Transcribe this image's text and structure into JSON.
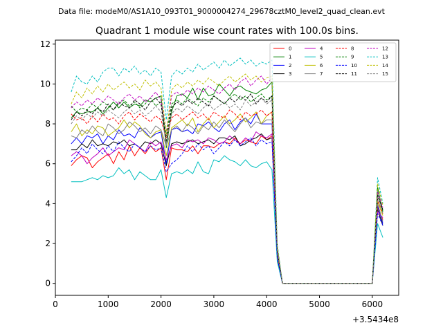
{
  "figure": {
    "suptitle": "Data file: modeM0/AS1A10_093T01_9000004274_29678cztM0_level2_quad_clean.evt"
  },
  "chart_data": {
    "type": "line",
    "title": "Quadrant 1 module wise count rates with 100.0s bins.",
    "xlabel": "",
    "ylabel": "",
    "x_offset_label": "+3.5434e8",
    "xlim": [
      0,
      6500
    ],
    "ylim": [
      -0.6,
      12.2
    ],
    "xticks": [
      0,
      1000,
      2000,
      3000,
      4000,
      5000,
      6000
    ],
    "yticks": [
      0,
      2,
      4,
      6,
      8,
      10,
      12
    ],
    "grid": false,
    "legend_position": "top-right",
    "legend_columns": 4,
    "x": [
      300,
      400,
      500,
      600,
      700,
      800,
      900,
      1000,
      1100,
      1200,
      1300,
      1400,
      1500,
      1600,
      1700,
      1800,
      1900,
      2000,
      2100,
      2200,
      2300,
      2400,
      2500,
      2600,
      2700,
      2800,
      2900,
      3000,
      3100,
      3200,
      3300,
      3400,
      3500,
      3600,
      3700,
      3800,
      3900,
      4000,
      4100,
      4200,
      4300,
      4400,
      4500,
      4600,
      4700,
      4800,
      4900,
      5000,
      5100,
      5200,
      5300,
      5400,
      5500,
      5600,
      5700,
      5800,
      5900,
      6000,
      6100,
      6200
    ],
    "series": [
      {
        "name": "0",
        "color": "#ff0000",
        "dash": "solid",
        "values": [
          5.9,
          6.2,
          6.4,
          6.3,
          5.8,
          6.1,
          6.3,
          6.5,
          6.0,
          6.6,
          6.2,
          6.9,
          6.4,
          6.8,
          6.5,
          6.9,
          6.6,
          6.8,
          5.2,
          6.8,
          6.7,
          6.7,
          6.6,
          6.9,
          6.5,
          6.9,
          6.9,
          6.8,
          7.0,
          7.1,
          7.0,
          7.3,
          7.0,
          7.2,
          7.1,
          7.0,
          7.4,
          7.2,
          7.4,
          1.3,
          0,
          0,
          0,
          0,
          0,
          0,
          0,
          0,
          0,
          0,
          0,
          0,
          0,
          0,
          0,
          0,
          0,
          0,
          3.8,
          3.2
        ]
      },
      {
        "name": "1",
        "color": "#008000",
        "dash": "solid",
        "values": [
          8.3,
          8.6,
          8.5,
          8.6,
          8.6,
          8.8,
          8.5,
          8.8,
          9.1,
          8.8,
          9.1,
          8.8,
          9.0,
          8.9,
          9.2,
          9.1,
          9.3,
          9.4,
          6.8,
          8.6,
          9.4,
          9.5,
          9.3,
          9.8,
          9.2,
          9.8,
          9.4,
          9.5,
          10.0,
          9.7,
          9.4,
          9.8,
          9.9,
          9.7,
          9.6,
          9.5,
          9.7,
          9.8,
          10.1,
          1.6,
          0,
          0,
          0,
          0,
          0,
          0,
          0,
          0,
          0,
          0,
          0,
          0,
          0,
          0,
          0,
          0,
          0,
          0,
          4.8,
          3.6
        ]
      },
      {
        "name": "2",
        "color": "#0000ff",
        "dash": "solid",
        "values": [
          7.0,
          7.3,
          7.0,
          7.4,
          7.3,
          7.5,
          7.0,
          7.4,
          7.2,
          7.7,
          7.4,
          7.5,
          7.3,
          7.8,
          7.6,
          7.3,
          7.5,
          7.6,
          6.0,
          7.7,
          7.8,
          7.6,
          7.7,
          7.5,
          8.0,
          7.9,
          8.1,
          7.8,
          7.6,
          8.0,
          8.2,
          7.7,
          8.1,
          8.3,
          8.0,
          8.5,
          8.0,
          8.0,
          8.0,
          1.5,
          0,
          0,
          0,
          0,
          0,
          0,
          0,
          0,
          0,
          0,
          0,
          0,
          0,
          0,
          0,
          0,
          0,
          0,
          3.9,
          3.0
        ]
      },
      {
        "name": "3",
        "color": "#000000",
        "dash": "solid",
        "values": [
          6.7,
          6.7,
          7.0,
          6.8,
          7.2,
          6.9,
          7.0,
          6.9,
          7.1,
          7.0,
          7.2,
          6.9,
          7.0,
          6.8,
          7.1,
          7.0,
          7.2,
          7.0,
          5.9,
          7.0,
          7.1,
          7.0,
          7.1,
          7.2,
          7.0,
          7.1,
          7.2,
          7.0,
          7.3,
          7.3,
          7.2,
          7.4,
          6.9,
          7.0,
          7.2,
          7.3,
          7.5,
          7.2,
          7.3,
          1.3,
          0,
          0,
          0,
          0,
          0,
          0,
          0,
          0,
          0,
          0,
          0,
          0,
          0,
          0,
          0,
          0,
          0,
          0,
          3.7,
          2.9
        ]
      },
      {
        "name": "4",
        "color": "#bf00bf",
        "dash": "solid",
        "values": [
          6.4,
          6.6,
          6.4,
          6.0,
          6.3,
          6.5,
          6.8,
          6.4,
          6.6,
          6.8,
          6.7,
          7.2,
          7.0,
          6.8,
          6.6,
          7.1,
          6.9,
          7.1,
          6.2,
          6.9,
          7.0,
          6.8,
          7.2,
          7.1,
          7.2,
          7.0,
          7.3,
          7.2,
          7.0,
          7.1,
          7.4,
          7.2,
          7.0,
          7.3,
          7.1,
          7.6,
          7.4,
          7.3,
          7.5,
          1.4,
          0,
          0,
          0,
          0,
          0,
          0,
          0,
          0,
          0,
          0,
          0,
          0,
          0,
          0,
          0,
          0,
          0,
          0,
          3.6,
          3.3
        ]
      },
      {
        "name": "5",
        "color": "#00bfbf",
        "dash": "solid",
        "values": [
          5.1,
          5.1,
          5.1,
          5.2,
          5.3,
          5.2,
          5.4,
          5.3,
          5.4,
          5.8,
          5.5,
          5.7,
          5.2,
          5.6,
          5.4,
          5.2,
          5.2,
          5.7,
          4.3,
          5.5,
          5.6,
          5.5,
          5.7,
          5.5,
          6.1,
          5.6,
          5.5,
          6.2,
          6.1,
          6.4,
          6.2,
          6.1,
          5.9,
          6.2,
          5.9,
          5.8,
          6.0,
          6.1,
          5.7,
          1.1,
          0,
          0,
          0,
          0,
          0,
          0,
          0,
          0,
          0,
          0,
          0,
          0,
          0,
          0,
          0,
          0,
          0,
          0,
          3.0,
          2.3
        ]
      },
      {
        "name": "6",
        "color": "#bfbf00",
        "dash": "solid",
        "values": [
          7.6,
          8.0,
          7.4,
          7.7,
          7.5,
          7.9,
          7.8,
          7.4,
          7.6,
          7.8,
          8.2,
          7.8,
          8.1,
          7.9,
          7.5,
          7.3,
          7.6,
          7.7,
          6.4,
          7.8,
          8.0,
          8.2,
          7.9,
          8.3,
          7.6,
          8.0,
          8.3,
          7.8,
          8.1,
          8.4,
          8.0,
          8.2,
          8.5,
          8.1,
          8.3,
          8.6,
          8.0,
          8.4,
          8.6,
          1.5,
          0,
          0,
          0,
          0,
          0,
          0,
          0,
          0,
          0,
          0,
          0,
          0,
          0,
          0,
          0,
          0,
          0,
          0,
          4.1,
          3.4
        ]
      },
      {
        "name": "7",
        "color": "#808080",
        "dash": "solid",
        "values": [
          7.4,
          7.3,
          7.7,
          7.5,
          7.9,
          7.6,
          7.4,
          8.0,
          7.8,
          7.5,
          7.7,
          8.1,
          7.9,
          7.6,
          7.8,
          7.5,
          7.9,
          7.7,
          6.9,
          7.7,
          7.9,
          7.6,
          8.0,
          7.8,
          7.5,
          7.9,
          7.7,
          8.1,
          7.8,
          8.2,
          7.9,
          7.6,
          8.0,
          8.3,
          7.8,
          8.1,
          8.0,
          8.2,
          8.2,
          1.5,
          0,
          0,
          0,
          0,
          0,
          0,
          0,
          0,
          0,
          0,
          0,
          0,
          0,
          0,
          0,
          0,
          0,
          0,
          4.0,
          3.1
        ]
      },
      {
        "name": "8",
        "color": "#ff0000",
        "dash": "dashed",
        "values": [
          8.5,
          8.2,
          8.3,
          8.0,
          8.4,
          8.1,
          8.5,
          8.2,
          8.3,
          8.0,
          8.4,
          8.6,
          8.2,
          8.5,
          8.3,
          8.1,
          8.4,
          8.2,
          7.3,
          8.3,
          8.5,
          8.2,
          8.4,
          8.6,
          8.3,
          8.5,
          8.2,
          8.6,
          8.4,
          8.3,
          8.7,
          8.5,
          8.2,
          8.6,
          8.4,
          8.5,
          8.7,
          8.4,
          8.6,
          1.6,
          0,
          0,
          0,
          0,
          0,
          0,
          0,
          0,
          0,
          0,
          0,
          0,
          0,
          0,
          0,
          0,
          0,
          0,
          4.2,
          3.5
        ]
      },
      {
        "name": "9",
        "color": "#008000",
        "dash": "dashed",
        "values": [
          8.9,
          8.6,
          8.8,
          8.7,
          9.0,
          8.8,
          9.1,
          8.9,
          8.7,
          9.0,
          9.2,
          8.9,
          9.1,
          8.8,
          9.0,
          9.3,
          8.9,
          9.1,
          7.4,
          9.0,
          9.2,
          9.0,
          9.3,
          9.1,
          8.9,
          9.3,
          9.1,
          9.4,
          9.2,
          9.0,
          9.3,
          9.5,
          9.2,
          9.4,
          9.1,
          9.3,
          9.5,
          9.2,
          9.4,
          1.7,
          0,
          0,
          0,
          0,
          0,
          0,
          0,
          0,
          0,
          0,
          0,
          0,
          0,
          0,
          0,
          0,
          0,
          0,
          4.5,
          3.6
        ]
      },
      {
        "name": "10",
        "color": "#0000ff",
        "dash": "dashed",
        "values": [
          6.1,
          6.4,
          6.8,
          6.5,
          7.0,
          6.7,
          6.5,
          6.9,
          6.6,
          7.1,
          6.8,
          6.6,
          7.0,
          6.8,
          6.6,
          6.9,
          6.7,
          6.8,
          5.6,
          6.0,
          6.2,
          6.5,
          6.9,
          6.6,
          7.0,
          6.7,
          6.9,
          6.5,
          6.8,
          7.1,
          6.9,
          7.2,
          6.9,
          7.1,
          7.3,
          6.9,
          7.2,
          7.0,
          7.1,
          1.3,
          0,
          0,
          0,
          0,
          0,
          0,
          0,
          0,
          0,
          0,
          0,
          0,
          0,
          0,
          0,
          0,
          0,
          0,
          3.5,
          2.9
        ]
      },
      {
        "name": "11",
        "color": "#000000",
        "dash": "dashed",
        "values": [
          8.2,
          8.6,
          8.4,
          8.7,
          8.5,
          8.8,
          8.6,
          9.0,
          8.7,
          9.1,
          8.9,
          8.8,
          9.2,
          9.0,
          8.7,
          9.1,
          9.3,
          9.0,
          7.1,
          8.8,
          9.1,
          8.9,
          9.2,
          9.0,
          9.3,
          9.1,
          8.9,
          9.4,
          9.2,
          9.0,
          9.3,
          9.1,
          9.4,
          9.2,
          9.5,
          9.0,
          9.3,
          9.1,
          9.4,
          1.7,
          0,
          0,
          0,
          0,
          0,
          0,
          0,
          0,
          0,
          0,
          0,
          0,
          0,
          0,
          0,
          0,
          0,
          0,
          4.4,
          3.7
        ]
      },
      {
        "name": "12",
        "color": "#bf00bf",
        "dash": "dashed",
        "values": [
          8.8,
          9.1,
          8.9,
          9.2,
          9.0,
          9.3,
          9.1,
          9.4,
          9.2,
          9.0,
          9.3,
          9.5,
          9.2,
          9.4,
          9.1,
          9.3,
          9.6,
          9.2,
          7.6,
          9.4,
          9.6,
          9.4,
          9.7,
          9.5,
          9.8,
          9.6,
          9.9,
          9.7,
          9.5,
          9.8,
          10.0,
          9.7,
          10.1,
          10.3,
          9.9,
          10.2,
          10.4,
          10.0,
          10.3,
          1.8,
          0,
          0,
          0,
          0,
          0,
          0,
          0,
          0,
          0,
          0,
          0,
          0,
          0,
          0,
          0,
          0,
          0,
          0,
          4.6,
          3.8
        ]
      },
      {
        "name": "13",
        "color": "#00bfbf",
        "dash": "dashed",
        "values": [
          9.6,
          10.4,
          10.1,
          10.0,
          10.4,
          10.1,
          10.6,
          10.8,
          10.8,
          10.4,
          10.8,
          10.6,
          10.9,
          10.5,
          10.7,
          10.4,
          10.8,
          10.6,
          8.2,
          10.4,
          10.7,
          10.5,
          10.8,
          10.6,
          11.0,
          10.7,
          10.9,
          11.1,
          10.8,
          11.2,
          10.9,
          11.1,
          11.3,
          11.0,
          11.2,
          10.9,
          11.1,
          11.0,
          11.2,
          2.0,
          0,
          0,
          0,
          0,
          0,
          0,
          0,
          0,
          0,
          0,
          0,
          0,
          0,
          0,
          0,
          0,
          0,
          0,
          5.3,
          4.0
        ]
      },
      {
        "name": "14",
        "color": "#bfbf00",
        "dash": "dashed",
        "values": [
          9.0,
          9.6,
          9.3,
          9.8,
          9.5,
          9.9,
          9.6,
          10.0,
          9.7,
          9.9,
          10.1,
          9.8,
          10.0,
          9.7,
          10.2,
          9.9,
          10.1,
          9.8,
          7.5,
          9.7,
          10.0,
          9.8,
          10.1,
          9.9,
          10.2,
          10.0,
          10.3,
          10.1,
          9.9,
          10.2,
          10.4,
          10.1,
          10.3,
          10.5,
          10.2,
          10.4,
          10.1,
          10.3,
          10.4,
          1.9,
          0,
          0,
          0,
          0,
          0,
          0,
          0,
          0,
          0,
          0,
          0,
          0,
          0,
          0,
          0,
          0,
          0,
          0,
          5.0,
          3.9
        ]
      },
      {
        "name": "15",
        "color": "#808080",
        "dash": "dashed",
        "values": [
          8.0,
          8.4,
          8.2,
          8.5,
          8.3,
          8.6,
          8.4,
          8.7,
          8.5,
          8.3,
          8.6,
          8.8,
          8.5,
          8.7,
          8.4,
          8.6,
          8.9,
          8.6,
          7.0,
          8.5,
          8.8,
          8.6,
          8.9,
          8.7,
          8.5,
          8.8,
          9.0,
          8.7,
          8.9,
          9.1,
          8.8,
          9.0,
          8.7,
          9.2,
          8.9,
          9.1,
          9.3,
          9.0,
          9.2,
          1.7,
          0,
          0,
          0,
          0,
          0,
          0,
          0,
          0,
          0,
          0,
          0,
          0,
          0,
          0,
          0,
          0,
          0,
          0,
          4.3,
          3.5
        ]
      }
    ]
  }
}
